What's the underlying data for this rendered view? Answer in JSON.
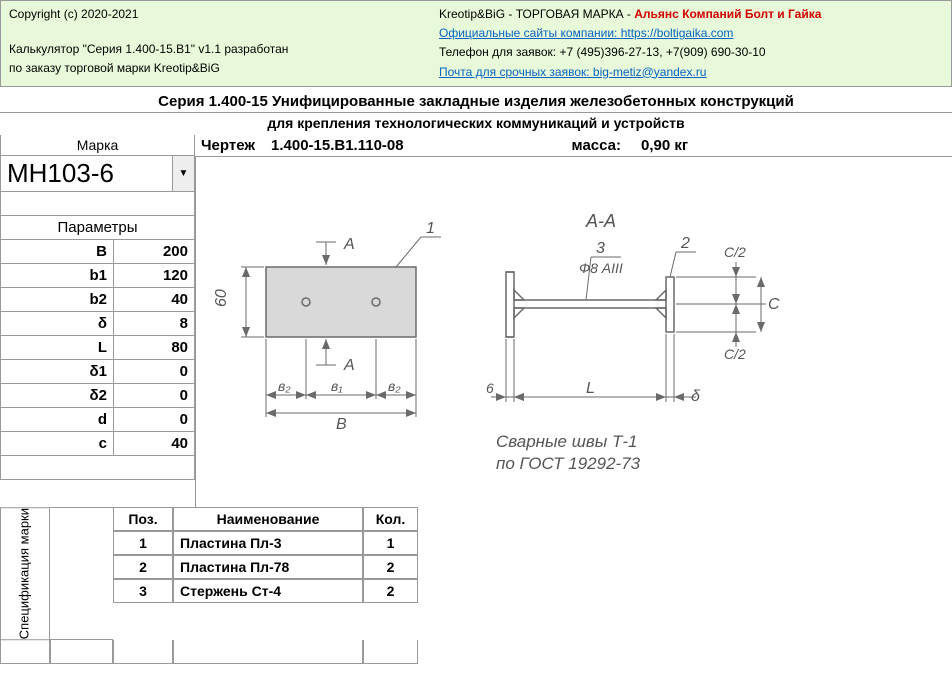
{
  "header": {
    "copyright": "Copyright (c) 2020-2021",
    "calc_line1": "Калькулятор \"Серия 1.400-15.В1\" v1.1 разработан",
    "calc_line2": "по заказу торговой марки Kreotip&BiG",
    "brand_prefix": "Kreotip&BiG - ТОРГОВАЯ МАРКА - ",
    "brand_red": "Альянс Компаний Болт и Гайка",
    "site_label": "Официальные сайты компании: ",
    "site_url": "https://boltigaika.com",
    "phone": "Телефон для заявок: +7 (495)396-27-13, +7(909) 690-30-10",
    "email_label": "Почта для срочных заявок: ",
    "email": "big-metiz@yandex.ru"
  },
  "title": "Серия 1.400-15 Унифицированные закладные изделия железобетонных конструкций",
  "subtitle": "для крепления технологических коммуникаций и устройств",
  "info": {
    "drawing_label": "Чертеж",
    "drawing_val": "1.400-15.В1.110-08",
    "mass_label": "масса:",
    "mass_val": "0,90 кг"
  },
  "marka": {
    "header": "Марка",
    "value": "МН103-6"
  },
  "params": {
    "header": "Параметры",
    "rows": [
      {
        "name": "B",
        "val": "200"
      },
      {
        "name": "b1",
        "val": "120"
      },
      {
        "name": "b2",
        "val": "40"
      },
      {
        "name": "δ",
        "val": "8"
      },
      {
        "name": "L",
        "val": "80"
      },
      {
        "name": "δ1",
        "val": "0"
      },
      {
        "name": "δ2",
        "val": "0"
      },
      {
        "name": "d",
        "val": "0"
      },
      {
        "name": "c",
        "val": "40"
      }
    ]
  },
  "drawing": {
    "section_label": "А-А",
    "ref_1": "1",
    "ref_2": "2",
    "ref_3": "3",
    "phi_note": "Ф8 AIII",
    "dim_60": "60",
    "dim_6": "6",
    "dim_A_top": "А",
    "dim_A_bot": "А",
    "dim_b2_l": "в₂",
    "dim_b1": "в₁",
    "dim_b2_r": "в₂",
    "dim_B": "В",
    "dim_L": "L",
    "dim_delta": "δ",
    "dim_C": "С",
    "dim_C2_top": "С/2",
    "dim_C2_bot": "С/2",
    "weld_line1": "Сварные швы Т-1",
    "weld_line2": "по ГОСТ 19292-73"
  },
  "spec": {
    "side_label": "Спецификация марки",
    "hdr_pos": "Поз.",
    "hdr_name": "Наименование",
    "hdr_qty": "Кол.",
    "rows": [
      {
        "pos": "1",
        "name": "Пластина Пл-3",
        "qty": "1"
      },
      {
        "pos": "2",
        "name": "Пластина Пл-78",
        "qty": "2"
      },
      {
        "pos": "3",
        "name": "Стержень Ст-4",
        "qty": "2"
      }
    ]
  },
  "colors": {
    "header_bg": "#e8f9d9",
    "red": "#d00000",
    "link": "#0563c1",
    "border": "#999999",
    "dwg_stroke": "#6a6a6a",
    "dwg_fill": "#d9d9d9"
  }
}
